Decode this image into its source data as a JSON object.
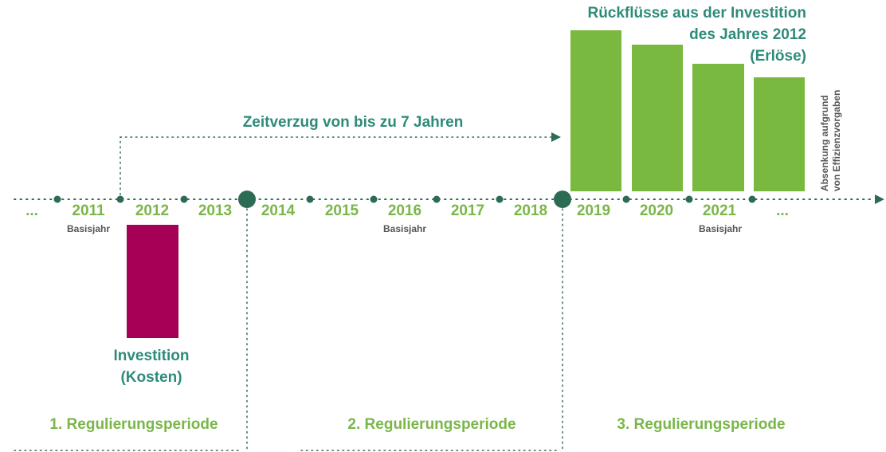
{
  "timeline": {
    "years": [
      "...",
      "2011",
      "2012",
      "2013",
      "2014",
      "2015",
      "2016",
      "2017",
      "2018",
      "2019",
      "2020",
      "2021",
      "..."
    ],
    "basisjahr_label": "Basisjahr"
  },
  "investment": {
    "label_line1": "Investition",
    "label_line2": "(Kosten)",
    "color": "#a50055"
  },
  "returns": {
    "title_line1": "Rückflüsse aus der Investition",
    "title_line2": "des Jahres 2012",
    "title_line3": "(Erlöse)",
    "color": "#7ab93f"
  },
  "delay": {
    "label": "Zeitverzug von bis zu 7 Jahren"
  },
  "efficiency": {
    "label_line1": "Absenkung aufgrund",
    "label_line2": "von Effizienzvorgaben"
  },
  "periods": [
    "1. Regulierungsperiode",
    "2. Regulierungsperiode",
    "3. Regulierungsperiode"
  ],
  "colors": {
    "accent_green": "#7ab648",
    "teal": "#2e8b7a",
    "axis_dark": "#2e6b55",
    "cost_bar": "#a50055"
  }
}
